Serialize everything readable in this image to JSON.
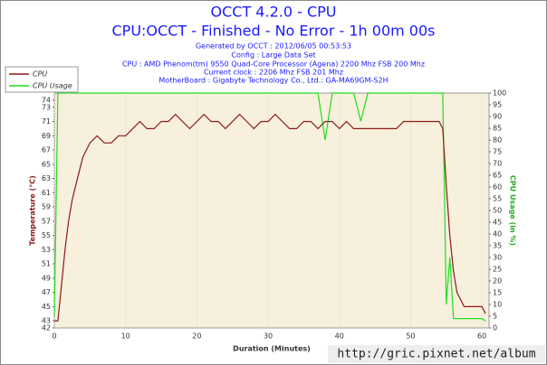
{
  "chart_data": {
    "type": "line",
    "title": "OCCT 4.2.0 - CPU",
    "subtitle": "CPU:OCCT - Finished - No Error - 1h 00m 00s",
    "info": [
      "Generated by OCCT : 2012/06/05 00:53:53",
      "Config : Large Data Set",
      "CPU : AMD Phenom(tm) 9550 Quad-Core Processor (Agena) 2200 Mhz FSB 200 Mhz",
      "Current clock : 2206 Mhz FSB 201 Mhz",
      "MotherBoard : Gigabyte Technology Co., Ltd.: GA-MA69GM-S2H"
    ],
    "x_label": "Duration (Minutes)",
    "y_label": "Temperature (°C)",
    "y2_label": "CPU Usage (in %)",
    "watermark": "http://gric.pixnet.net/album",
    "xlim": [
      0,
      61
    ],
    "xticks": [
      0,
      10,
      20,
      30,
      40,
      50,
      60
    ],
    "ylim": [
      42,
      75
    ],
    "yticks": [
      42,
      43,
      45,
      47,
      49,
      51,
      53,
      55,
      57,
      59,
      61,
      63,
      65,
      67,
      69,
      71,
      73,
      74
    ],
    "y2lim": [
      0,
      100
    ],
    "y2ticks": [
      0,
      5,
      10,
      15,
      20,
      25,
      30,
      35,
      40,
      45,
      50,
      55,
      60,
      65,
      70,
      75,
      80,
      85,
      90,
      95,
      100
    ],
    "grid": true,
    "legend": "top-left",
    "x": [
      0,
      0.5,
      1,
      1.5,
      2,
      2.5,
      3,
      3.5,
      4,
      4.5,
      5,
      6,
      7,
      8,
      9,
      10,
      11,
      12,
      13,
      14,
      15,
      16,
      17,
      18,
      19,
      20,
      21,
      22,
      23,
      24,
      25,
      26,
      27,
      28,
      29,
      30,
      31,
      32,
      33,
      34,
      35,
      36,
      37,
      38,
      39,
      40,
      41,
      42,
      43,
      44,
      45,
      46,
      47,
      48,
      49,
      50,
      51,
      52,
      53,
      54,
      54.5,
      55,
      55.5,
      56,
      56.5,
      57,
      57.5,
      58,
      59,
      60,
      60.5
    ],
    "series": [
      {
        "name": "CPU",
        "color": "#8b1a1a",
        "values": [
          43,
          43,
          48,
          53,
          57,
          60,
          62,
          64,
          66,
          67,
          68,
          69,
          68,
          68,
          69,
          69,
          70,
          71,
          70,
          70,
          71,
          71,
          72,
          71,
          70,
          71,
          72,
          71,
          71,
          70,
          71,
          72,
          71,
          70,
          71,
          71,
          72,
          71,
          70,
          70,
          71,
          71,
          70,
          71,
          71,
          70,
          71,
          70,
          70,
          70,
          70,
          70,
          70,
          70,
          71,
          71,
          71,
          71,
          71,
          71,
          70,
          62,
          55,
          50,
          47,
          46,
          45,
          45,
          45,
          45,
          44
        ]
      },
      {
        "name": "CPU Usage",
        "color": "#22dd22",
        "axis": "y2",
        "values": [
          5,
          100,
          100,
          100,
          100,
          100,
          100,
          100,
          100,
          100,
          100,
          100,
          100,
          100,
          100,
          100,
          100,
          100,
          100,
          100,
          100,
          100,
          100,
          100,
          100,
          100,
          100,
          100,
          100,
          100,
          100,
          100,
          100,
          100,
          100,
          100,
          100,
          100,
          100,
          100,
          100,
          100,
          100,
          80,
          100,
          100,
          100,
          100,
          88,
          100,
          100,
          100,
          100,
          100,
          100,
          100,
          100,
          100,
          100,
          100,
          100,
          10,
          30,
          4,
          4,
          4,
          4,
          4,
          4,
          4,
          3
        ]
      }
    ]
  }
}
